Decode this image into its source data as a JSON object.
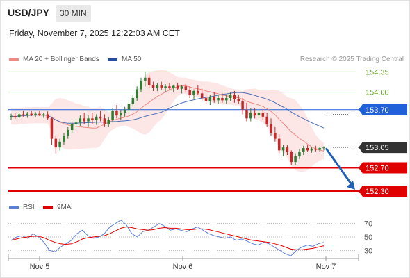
{
  "header": {
    "symbol": "USD/JPY",
    "timeframe": "30 MIN",
    "datetime": "Friday, November 7, 2025 12:22:03 AM CET"
  },
  "legend": {
    "ma20_label": "MA 20 + Bollinger Bands",
    "ma50_label": "MA 50",
    "credit": "Research © 2025 Trading Central",
    "rsi_label": "RSI",
    "ma9_label": "9MA"
  },
  "colors": {
    "up": "#2e7d32",
    "down": "#c62828",
    "ma20": "#ef8a80",
    "ma50": "#4e6fb5",
    "band": "#fde3e3",
    "support": "#e00000",
    "resistance": "#2060d8",
    "current": "#333333",
    "target_lines": "#b9da9b",
    "target_text": "#6aa329",
    "arrow": "#1f5fb5",
    "rsi": "#5b7fd6",
    "rsi_ma": "#e00000"
  },
  "chart_data": [
    {
      "type": "candlestick",
      "title": "USD/JPY 30 MIN",
      "x_labels": [
        "Nov 5",
        "Nov 6",
        "Nov 7"
      ],
      "ylim": [
        152.18,
        154.45
      ],
      "levels": [
        {
          "value": 154.35,
          "label": "154.35",
          "kind": "target"
        },
        {
          "value": 154.0,
          "label": "154.00",
          "kind": "target"
        },
        {
          "value": 153.7,
          "label": "153.70",
          "kind": "resistance"
        },
        {
          "value": 153.05,
          "label": "153.05",
          "kind": "current"
        },
        {
          "value": 152.7,
          "label": "152.70",
          "kind": "support"
        },
        {
          "value": 152.3,
          "label": "152.30",
          "kind": "support"
        }
      ],
      "series": [
        {
          "name": "MA 20 + Bollinger Bands",
          "kind": "ma20"
        },
        {
          "name": "MA 50",
          "kind": "ma50"
        }
      ],
      "forecast": {
        "from": 153.05,
        "to": 152.3
      },
      "candles": [
        [
          153.57,
          153.63,
          153.52,
          153.59
        ],
        [
          153.59,
          153.64,
          153.54,
          153.57
        ],
        [
          153.57,
          153.65,
          153.55,
          153.62
        ],
        [
          153.62,
          153.68,
          153.58,
          153.6
        ],
        [
          153.6,
          153.66,
          153.56,
          153.63
        ],
        [
          153.63,
          153.68,
          153.59,
          153.61
        ],
        [
          153.61,
          153.66,
          153.57,
          153.63
        ],
        [
          153.63,
          153.68,
          153.59,
          153.6
        ],
        [
          153.6,
          153.65,
          153.56,
          153.62
        ],
        [
          153.62,
          153.67,
          153.53,
          153.55
        ],
        [
          153.55,
          153.58,
          153.1,
          153.2
        ],
        [
          153.2,
          153.25,
          152.95,
          153.05
        ],
        [
          153.05,
          153.2,
          153.0,
          153.15
        ],
        [
          153.15,
          153.3,
          153.1,
          153.25
        ],
        [
          153.25,
          153.4,
          153.2,
          153.35
        ],
        [
          153.35,
          153.5,
          153.3,
          153.45
        ],
        [
          153.45,
          153.55,
          153.38,
          153.48
        ],
        [
          153.48,
          153.6,
          153.42,
          153.55
        ],
        [
          153.55,
          153.65,
          153.45,
          153.5
        ],
        [
          153.5,
          153.6,
          153.4,
          153.55
        ],
        [
          153.55,
          153.65,
          153.45,
          153.52
        ],
        [
          153.52,
          153.62,
          153.44,
          153.58
        ],
        [
          153.58,
          153.68,
          153.5,
          153.55
        ],
        [
          153.55,
          153.62,
          153.4,
          153.45
        ],
        [
          153.45,
          153.58,
          153.4,
          153.52
        ],
        [
          153.52,
          153.72,
          153.48,
          153.68
        ],
        [
          153.68,
          153.78,
          153.55,
          153.6
        ],
        [
          153.6,
          153.7,
          153.52,
          153.65
        ],
        [
          153.65,
          153.75,
          153.58,
          153.7
        ],
        [
          153.7,
          153.85,
          153.65,
          153.8
        ],
        [
          153.8,
          153.95,
          153.75,
          153.9
        ],
        [
          153.9,
          154.1,
          153.85,
          154.05
        ],
        [
          154.05,
          154.25,
          154.0,
          154.2
        ],
        [
          154.2,
          154.35,
          154.1,
          154.25
        ],
        [
          154.25,
          154.3,
          154.08,
          154.12
        ],
        [
          154.12,
          154.18,
          154.02,
          154.08
        ],
        [
          154.08,
          154.16,
          154.02,
          154.12
        ],
        [
          154.12,
          154.18,
          154.04,
          154.08
        ],
        [
          154.08,
          154.14,
          154.0,
          154.1
        ],
        [
          154.1,
          154.16,
          154.04,
          154.07
        ],
        [
          154.07,
          154.13,
          154.0,
          154.11
        ],
        [
          154.11,
          154.16,
          154.04,
          154.06
        ],
        [
          154.06,
          154.12,
          153.98,
          154.1
        ],
        [
          154.1,
          154.14,
          154.0,
          154.04
        ],
        [
          154.04,
          154.1,
          153.9,
          153.95
        ],
        [
          153.95,
          154.05,
          153.88,
          154.02
        ],
        [
          154.02,
          154.12,
          153.95,
          153.98
        ],
        [
          153.98,
          154.06,
          153.85,
          153.9
        ],
        [
          153.9,
          153.98,
          153.8,
          153.85
        ],
        [
          153.85,
          153.95,
          153.78,
          153.92
        ],
        [
          153.92,
          154.0,
          153.82,
          153.86
        ],
        [
          153.86,
          153.96,
          153.8,
          153.9
        ],
        [
          153.9,
          153.98,
          153.82,
          153.86
        ],
        [
          153.86,
          153.95,
          153.8,
          153.9
        ],
        [
          153.9,
          154.0,
          153.85,
          153.95
        ],
        [
          153.95,
          154.02,
          153.82,
          153.88
        ],
        [
          153.88,
          153.96,
          153.8,
          153.84
        ],
        [
          153.84,
          153.9,
          153.62,
          153.7
        ],
        [
          153.7,
          153.82,
          153.5,
          153.55
        ],
        [
          153.55,
          153.72,
          153.5,
          153.65
        ],
        [
          153.65,
          153.72,
          153.55,
          153.6
        ],
        [
          153.6,
          153.7,
          153.55,
          153.65
        ],
        [
          153.65,
          153.72,
          153.52,
          153.58
        ],
        [
          153.58,
          153.65,
          153.4,
          153.45
        ],
        [
          153.45,
          153.55,
          153.25,
          153.3
        ],
        [
          153.3,
          153.4,
          153.15,
          153.2
        ],
        [
          153.2,
          153.28,
          152.95,
          153.0
        ],
        [
          153.0,
          153.1,
          152.9,
          153.05
        ],
        [
          153.05,
          153.1,
          152.92,
          152.98
        ],
        [
          152.98,
          153.0,
          152.75,
          152.8
        ],
        [
          152.8,
          152.95,
          152.75,
          152.9
        ],
        [
          152.9,
          153.02,
          152.85,
          152.98
        ],
        [
          152.98,
          153.08,
          152.92,
          153.04
        ],
        [
          153.04,
          153.1,
          152.98,
          153.0
        ],
        [
          153.0,
          153.06,
          152.96,
          153.03
        ],
        [
          153.03,
          153.08,
          152.98,
          153.01
        ],
        [
          153.01,
          153.06,
          152.98,
          153.04
        ],
        [
          153.04,
          153.07,
          153.0,
          153.05
        ]
      ]
    },
    {
      "type": "line",
      "title": "RSI",
      "ylim": [
        20,
        80
      ],
      "y_ticks": [
        "70",
        "50",
        "30"
      ],
      "series": [
        {
          "name": "RSI",
          "values": [
            45,
            50,
            52,
            48,
            55,
            50,
            42,
            30,
            28,
            35,
            40,
            45,
            55,
            60,
            52,
            48,
            50,
            55,
            65,
            70,
            75,
            68,
            55,
            50,
            58,
            60,
            65,
            70,
            66,
            60,
            62,
            60,
            58,
            62,
            65,
            60,
            55,
            52,
            50,
            48,
            50,
            45,
            47,
            44,
            40,
            38,
            42,
            40,
            35,
            30,
            25,
            22,
            30,
            35,
            38,
            36,
            40,
            42
          ]
        },
        {
          "name": "9MA",
          "values": [
            45,
            47,
            49,
            50,
            51,
            51,
            49,
            45,
            42,
            40,
            39,
            40,
            43,
            47,
            49,
            50,
            51,
            52,
            55,
            59,
            63,
            65,
            64,
            62,
            61,
            60,
            61,
            63,
            64,
            63,
            63,
            62,
            61,
            61,
            62,
            62,
            61,
            59,
            57,
            55,
            53,
            51,
            49,
            47,
            45,
            44,
            43,
            42,
            40,
            38,
            35,
            32,
            31,
            31,
            32,
            33,
            35,
            37
          ]
        }
      ]
    }
  ]
}
